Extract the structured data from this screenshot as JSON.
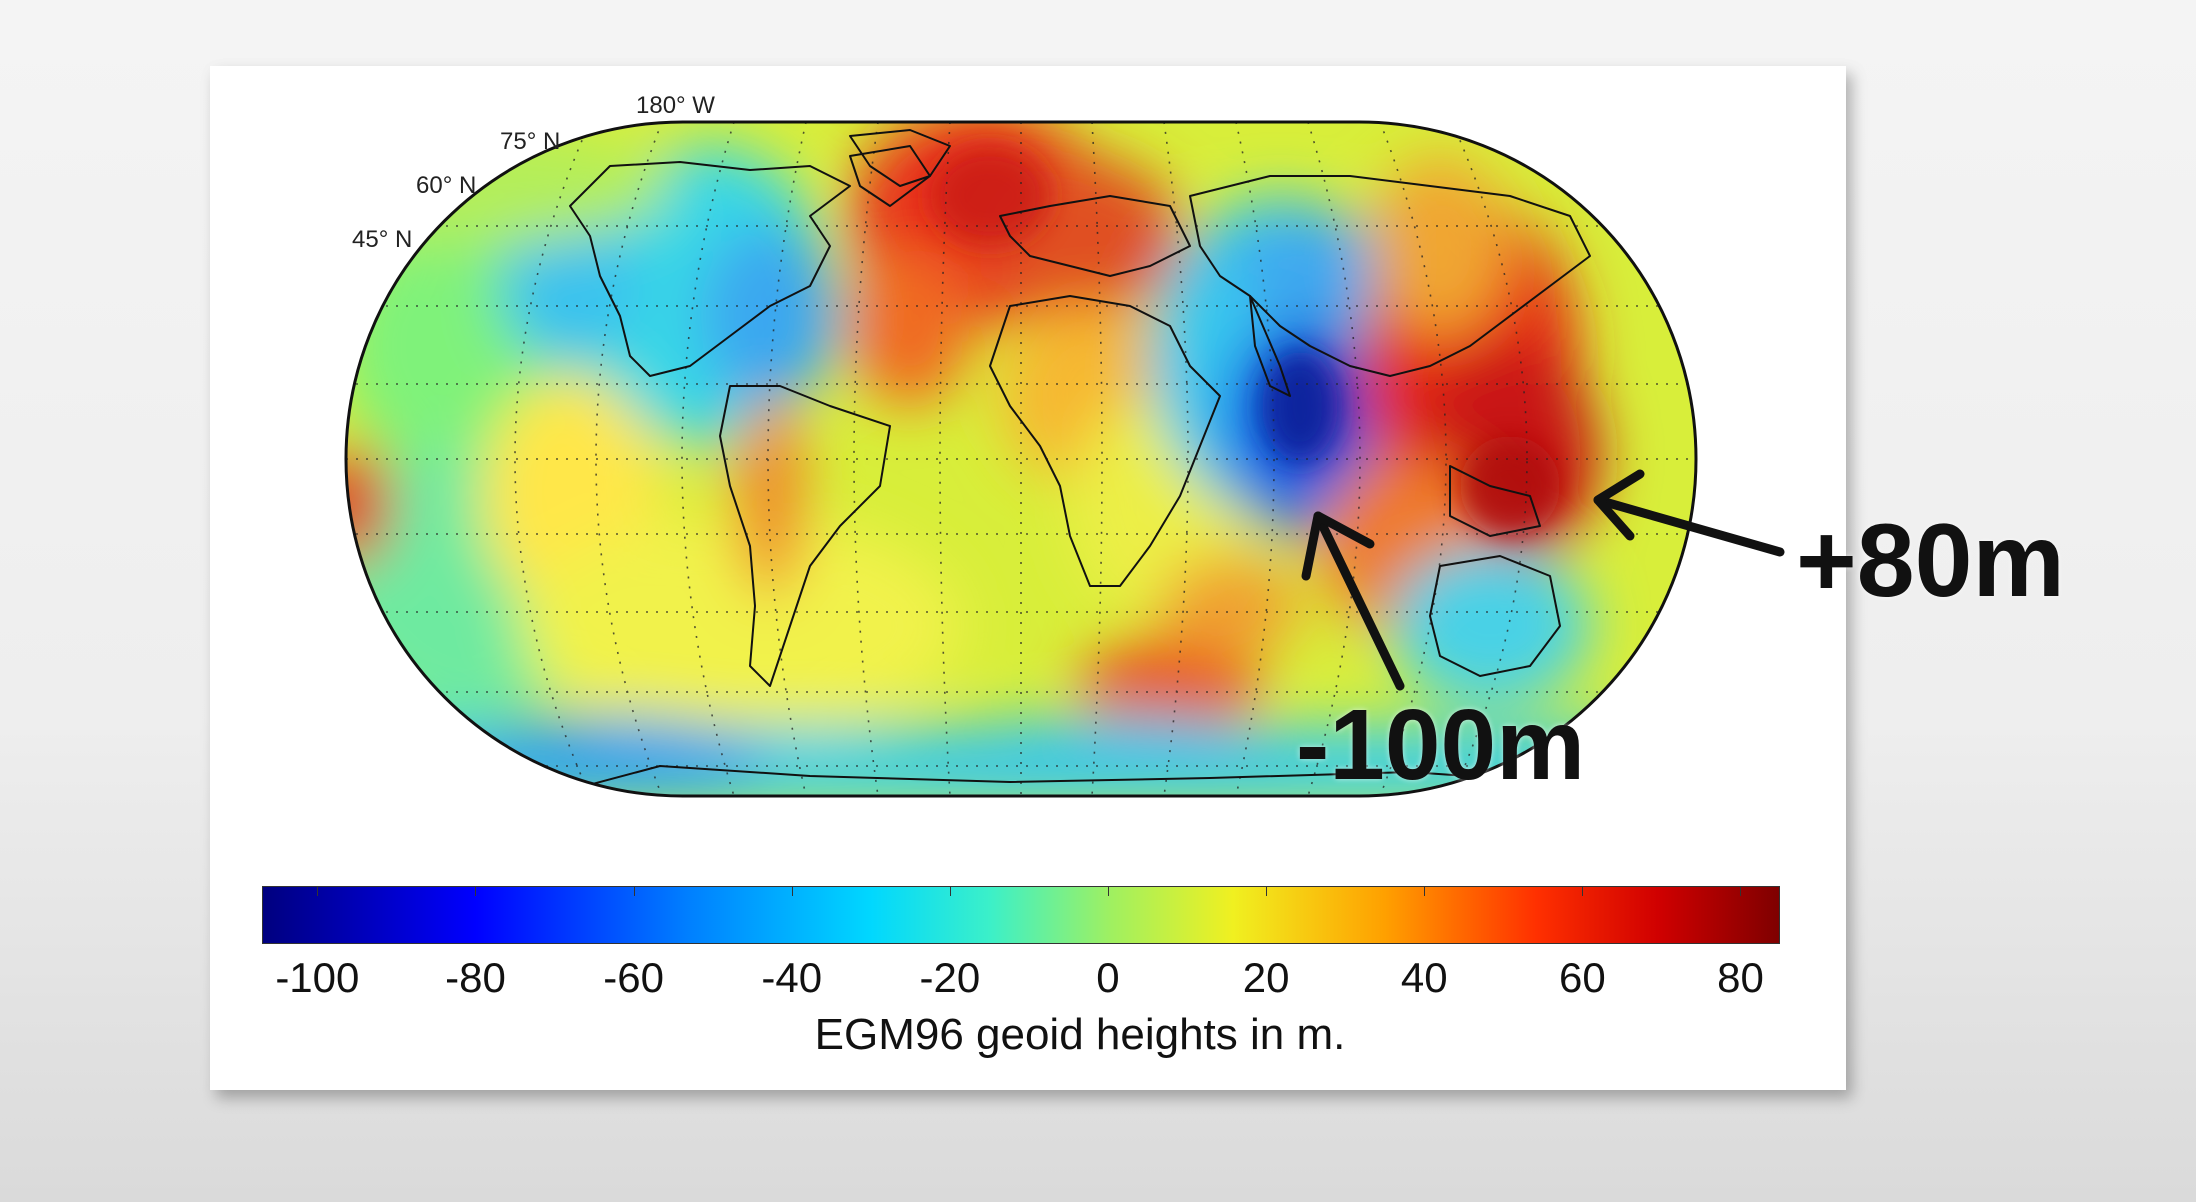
{
  "map": {
    "latitude_labels": [
      "180° W",
      "75° N",
      "60° N",
      "45° N"
    ],
    "colorbar": {
      "title": "EGM96 geoid heights in m.",
      "ticks": [
        "-100",
        "-80",
        "-60",
        "-40",
        "-20",
        "0",
        "20",
        "40",
        "60",
        "80"
      ],
      "range": [
        -107,
        85
      ],
      "colormap": "jet"
    },
    "annotations": [
      {
        "text": "-100m",
        "value": -100,
        "region": "Indian Ocean south of India"
      },
      {
        "text": "+80m",
        "value": 80,
        "region": "near New Guinea"
      }
    ],
    "graticule": "dotted",
    "projection": "Robinson-like"
  }
}
